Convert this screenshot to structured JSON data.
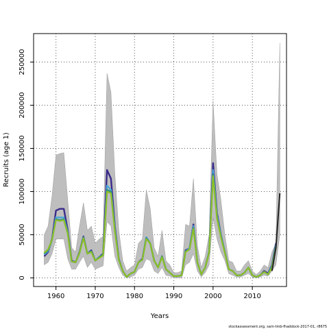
{
  "chart_data": {
    "type": "line",
    "title": "",
    "xlabel": "Years",
    "ylabel": "Recruits (age 1)",
    "xlim": [
      1954.3,
      2018.7
    ],
    "ylim": [
      -10000,
      283000
    ],
    "x_ticks": [
      1960,
      1970,
      1980,
      1990,
      2000,
      2010
    ],
    "y_ticks": [
      0,
      50000,
      100000,
      150000,
      200000,
      250000
    ],
    "grid": true,
    "legend": "none",
    "years": [
      1957,
      1958,
      1959,
      1960,
      1961,
      1962,
      1963,
      1964,
      1965,
      1966,
      1967,
      1968,
      1969,
      1970,
      1971,
      1972,
      1973,
      1974,
      1975,
      1976,
      1977,
      1978,
      1979,
      1980,
      1981,
      1982,
      1983,
      1984,
      1985,
      1986,
      1987,
      1988,
      1989,
      1990,
      1991,
      1992,
      1993,
      1994,
      1995,
      1996,
      1997,
      1998,
      1999,
      2000,
      2001,
      2002,
      2003,
      2004,
      2005,
      2006,
      2007,
      2008,
      2009,
      2010,
      2011,
      2012,
      2013,
      2014,
      2015,
      2016,
      2017
    ],
    "ci_upper": [
      50000,
      60000,
      95000,
      142000,
      144000,
      145000,
      90000,
      35000,
      30000,
      60000,
      87000,
      55000,
      60000,
      40000,
      45000,
      48000,
      237000,
      215000,
      120000,
      55000,
      20000,
      8000,
      12000,
      15000,
      40000,
      45000,
      102000,
      80000,
      35000,
      25000,
      55000,
      20000,
      15000,
      6000,
      6000,
      8000,
      62000,
      60000,
      115000,
      38000,
      12000,
      25000,
      50000,
      205000,
      120000,
      90000,
      50000,
      20000,
      18000,
      8000,
      8000,
      15000,
      20000,
      8000,
      4000,
      8000,
      15000,
      12000,
      30000,
      40000,
      272000
    ],
    "ci_lower": [
      15000,
      18000,
      28000,
      45000,
      45000,
      45000,
      22000,
      10000,
      10000,
      18000,
      25000,
      12000,
      18000,
      10000,
      12000,
      14000,
      65000,
      60000,
      25000,
      12000,
      3000,
      0,
      1000,
      3000,
      10000,
      12000,
      22000,
      20000,
      8000,
      5000,
      12000,
      3000,
      2000,
      0,
      0,
      0,
      15000,
      18000,
      28000,
      8000,
      1000,
      6000,
      15000,
      70000,
      45000,
      30000,
      20000,
      5000,
      3000,
      1000,
      1000,
      3000,
      5000,
      1000,
      0,
      1000,
      3000,
      2000,
      8000,
      15000,
      50000
    ],
    "series": [
      {
        "color": "#3a2a8a",
        "values": [
          25000,
          30000,
          45000,
          78000,
          80000,
          80000,
          55000,
          20000,
          18000,
          30000,
          48000,
          28000,
          32000,
          20000,
          24000,
          28000,
          125000,
          115000,
          60000,
          22000,
          8000,
          1000,
          5000,
          7000,
          18000,
          22000,
          47000,
          40000,
          20000,
          12000,
          25000,
          10000,
          6000,
          2000,
          2000,
          3000,
          32000,
          34000,
          62000,
          18000,
          4000,
          12000,
          30000,
          133000,
          75000,
          50000,
          30000,
          10000,
          8000,
          3000,
          3000,
          6000,
          12000,
          3000,
          1000,
          3000,
          8000,
          5000,
          15000,
          40000,
          null
        ]
      },
      {
        "color": "#4fa8d8",
        "values": [
          27000,
          31000,
          44000,
          70000,
          70000,
          70000,
          53000,
          19000,
          18000,
          29000,
          47000,
          28000,
          31000,
          20000,
          24000,
          27000,
          107000,
          102000,
          57000,
          21000,
          8000,
          1000,
          5000,
          7000,
          18000,
          21000,
          47000,
          40000,
          20000,
          12000,
          25000,
          10000,
          6000,
          2000,
          2000,
          3000,
          31000,
          34000,
          60000,
          18000,
          4000,
          12000,
          30000,
          125000,
          72000,
          49000,
          30000,
          10000,
          8000,
          3000,
          3000,
          6000,
          12000,
          3000,
          1000,
          3000,
          7000,
          4000,
          14000,
          38000,
          null
        ]
      },
      {
        "color": "#2f8f7a",
        "values": [
          28000,
          32000,
          44000,
          68000,
          67000,
          68000,
          52000,
          19000,
          18000,
          29000,
          47000,
          28000,
          31000,
          20000,
          24000,
          27000,
          102000,
          100000,
          55000,
          21000,
          8000,
          1000,
          5000,
          7000,
          18000,
          21000,
          46000,
          40000,
          20000,
          12000,
          25000,
          10000,
          6000,
          2000,
          2000,
          3000,
          31000,
          33000,
          58000,
          18000,
          4000,
          12000,
          30000,
          120000,
          70000,
          48000,
          30000,
          10000,
          8000,
          3000,
          3000,
          6000,
          12000,
          3000,
          1000,
          3000,
          7000,
          4000,
          13000,
          37000,
          null
        ]
      },
      {
        "color": "#8cbf26",
        "values": [
          29000,
          33000,
          44000,
          67000,
          66000,
          67000,
          51000,
          19000,
          18000,
          29000,
          46000,
          28000,
          30000,
          20000,
          23000,
          26000,
          100000,
          98000,
          54000,
          21000,
          8000,
          1000,
          5000,
          7000,
          18000,
          21000,
          45000,
          40000,
          20000,
          12000,
          24000,
          10000,
          6000,
          2000,
          2000,
          3000,
          30000,
          33000,
          57000,
          18000,
          4000,
          12000,
          29000,
          118000,
          69000,
          47000,
          29000,
          10000,
          8000,
          3000,
          3000,
          6000,
          12000,
          3000,
          1000,
          3000,
          7000,
          4000,
          12000,
          35000,
          null
        ]
      },
      {
        "color": "#222222",
        "values": [
          null,
          null,
          null,
          null,
          null,
          null,
          null,
          null,
          null,
          null,
          null,
          null,
          null,
          null,
          null,
          null,
          null,
          null,
          null,
          null,
          null,
          null,
          null,
          null,
          null,
          null,
          null,
          null,
          null,
          null,
          null,
          null,
          null,
          null,
          null,
          null,
          null,
          null,
          null,
          null,
          null,
          null,
          null,
          null,
          null,
          null,
          null,
          null,
          null,
          null,
          null,
          null,
          null,
          null,
          null,
          null,
          null,
          null,
          8000,
          35000,
          98000
        ]
      }
    ],
    "colors": {
      "ci_band": "#bebebe",
      "grid": "#555555",
      "axis": "#000000"
    }
  },
  "footer": {
    "source_note": "stockassessment.org, sam-tmb-fhaddock-2017-01, r8675"
  }
}
